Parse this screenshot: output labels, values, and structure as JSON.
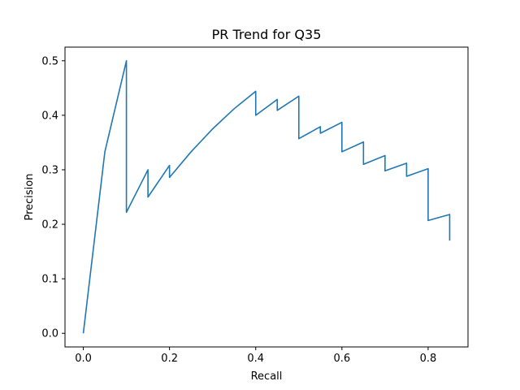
{
  "chart_data": {
    "type": "line",
    "title": "PR Trend for Q35",
    "xlabel": "Recall",
    "ylabel": "Precision",
    "xlim": [
      -0.0425,
      0.8925
    ],
    "ylim": [
      -0.025,
      0.525
    ],
    "xticks": [
      0.0,
      0.2,
      0.4,
      0.6,
      0.8
    ],
    "xtick_labels": [
      "0.0",
      "0.2",
      "0.4",
      "0.6",
      "0.8"
    ],
    "yticks": [
      0.0,
      0.1,
      0.2,
      0.3,
      0.4,
      0.5
    ],
    "ytick_labels": [
      "0.0",
      "0.1",
      "0.2",
      "0.3",
      "0.4",
      "0.5"
    ],
    "grid": false,
    "legend": "none",
    "series": [
      {
        "color": "#1f77b4",
        "x": [
          0.0,
          0.05,
          0.1,
          0.1,
          0.15,
          0.15,
          0.2,
          0.2,
          0.25,
          0.3,
          0.35,
          0.4,
          0.4,
          0.45,
          0.45,
          0.5,
          0.5,
          0.55,
          0.55,
          0.6,
          0.6,
          0.65,
          0.65,
          0.7,
          0.7,
          0.75,
          0.75,
          0.8,
          0.8,
          0.85,
          0.85
        ],
        "y": [
          0.0,
          0.333,
          0.5,
          0.222,
          0.3,
          0.25,
          0.308,
          0.286,
          0.333,
          0.375,
          0.412,
          0.444,
          0.4,
          0.429,
          0.409,
          0.435,
          0.357,
          0.379,
          0.367,
          0.387,
          0.333,
          0.351,
          0.31,
          0.326,
          0.298,
          0.312,
          0.288,
          0.302,
          0.207,
          0.218,
          0.17
        ]
      }
    ]
  }
}
